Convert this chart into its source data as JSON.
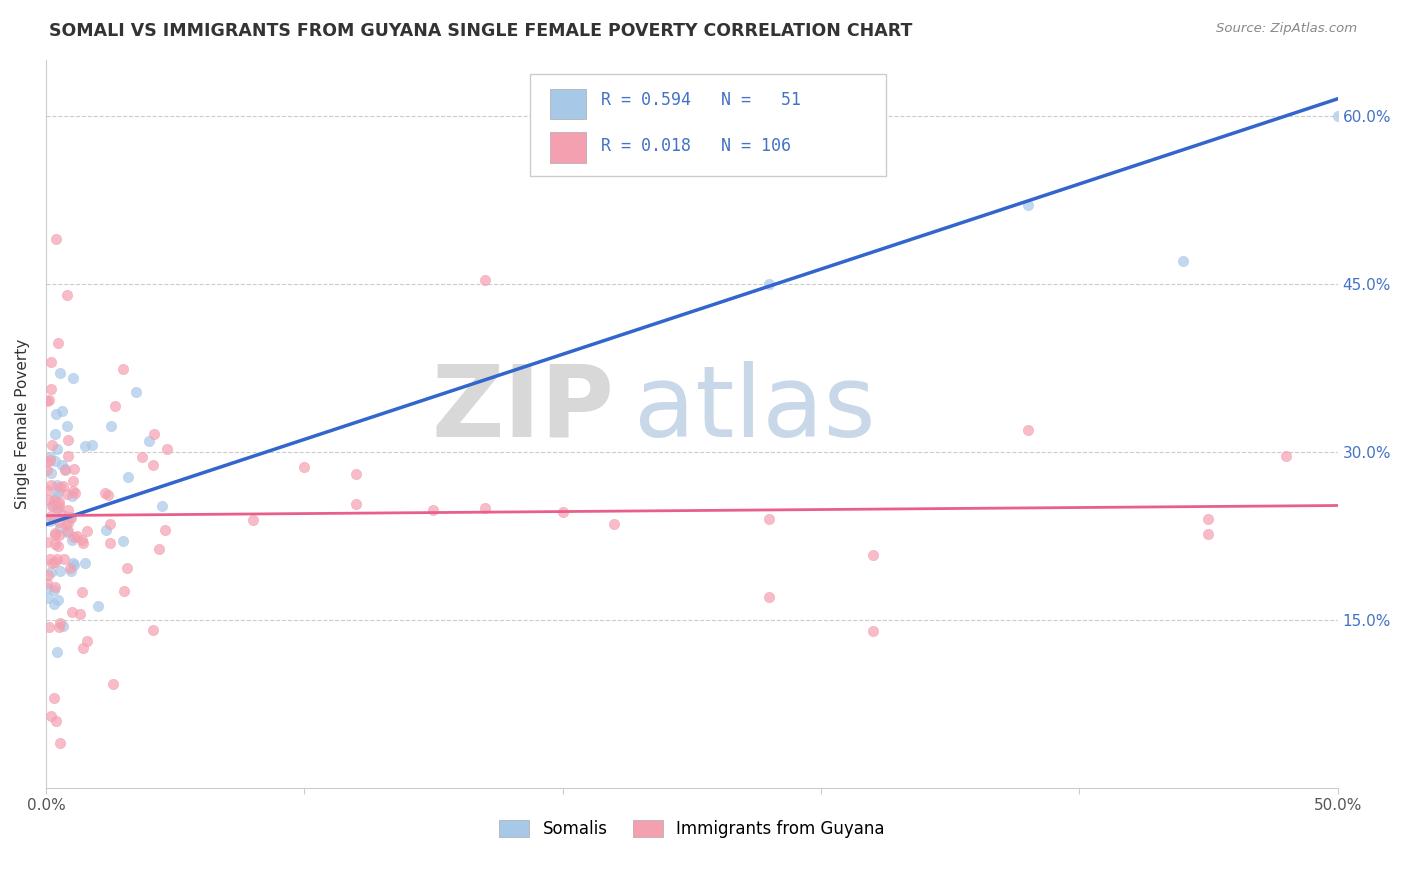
{
  "title": "SOMALI VS IMMIGRANTS FROM GUYANA SINGLE FEMALE POVERTY CORRELATION CHART",
  "source_text": "Source: ZipAtlas.com",
  "ylabel": "Single Female Poverty",
  "xlim": [
    0.0,
    0.5
  ],
  "ylim": [
    0.0,
    0.65
  ],
  "xtick_labels": [
    "0.0%",
    "",
    "",
    "",
    "",
    "50.0%"
  ],
  "xtick_vals": [
    0.0,
    0.1,
    0.2,
    0.3,
    0.4,
    0.5
  ],
  "ytick_vals_right": [
    0.15,
    0.3,
    0.45,
    0.6
  ],
  "ytick_labels_right": [
    "15.0%",
    "30.0%",
    "45.0%",
    "60.0%"
  ],
  "watermark_zip": "ZIP",
  "watermark_atlas": "atlas",
  "color_blue": "#a8c8e8",
  "color_pink": "#f4a0b0",
  "color_blue_line": "#3366cc",
  "color_pink_line": "#e8608a",
  "color_blue_text": "#4472c4",
  "somali_trend_x0": 0.0,
  "somali_trend_y0": 0.235,
  "somali_trend_x1": 0.5,
  "somali_trend_y1": 0.615,
  "guyana_trend_x0": 0.0,
  "guyana_trend_y0": 0.243,
  "guyana_trend_x1": 0.5,
  "guyana_trend_y1": 0.252
}
